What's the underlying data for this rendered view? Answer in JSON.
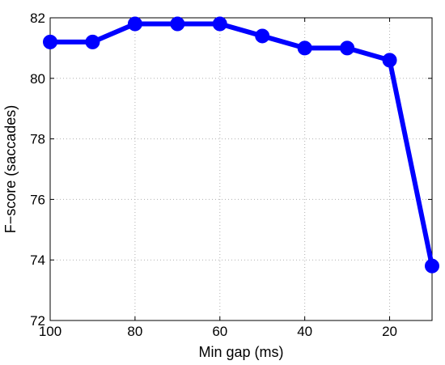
{
  "chart_data": {
    "type": "line",
    "xlabel": "Min gap (ms)",
    "ylabel": "F−score (saccades)",
    "xlim": [
      100,
      10
    ],
    "ylim": [
      72,
      82
    ],
    "x_reversed": true,
    "xticks": [
      100,
      80,
      60,
      40,
      20
    ],
    "xtick_labels": [
      "100",
      "80",
      "60",
      "40",
      "20"
    ],
    "yticks": [
      72,
      74,
      76,
      78,
      80,
      82
    ],
    "ytick_labels": [
      "72",
      "74",
      "76",
      "78",
      "80",
      "82"
    ],
    "grid": true,
    "series": [
      {
        "color": "#0000ff",
        "marker": "circle",
        "x": [
          100,
          90,
          80,
          70,
          60,
          50,
          40,
          30,
          20,
          10
        ],
        "y": [
          81.2,
          81.2,
          81.8,
          81.8,
          81.8,
          81.4,
          81.0,
          81.0,
          80.6,
          73.8
        ]
      }
    ]
  }
}
